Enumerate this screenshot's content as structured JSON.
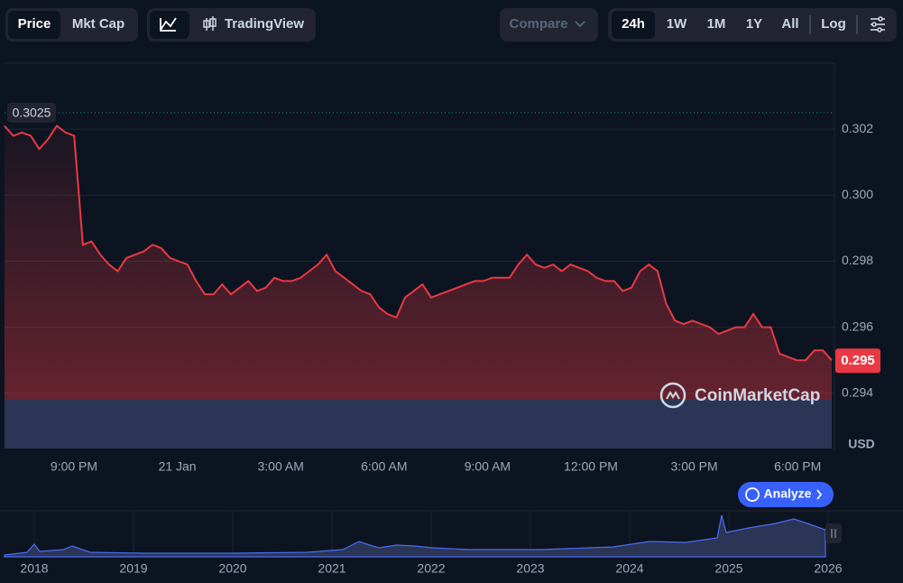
{
  "toolbar": {
    "view_buttons": [
      "Price",
      "Mkt Cap"
    ],
    "tradingview": "TradingView",
    "compare": "Compare",
    "ranges": [
      "24h",
      "1W",
      "1M",
      "1Y",
      "All"
    ],
    "log": "Log"
  },
  "chart_data": {
    "type": "line",
    "color": "#ea3943",
    "grid": true,
    "values": [
      0.3021,
      0.3018,
      0.3019,
      0.3018,
      0.3014,
      0.3017,
      0.3021,
      0.3019,
      0.3018,
      0.2985,
      0.2986,
      0.2982,
      0.2979,
      0.2977,
      0.2981,
      0.2982,
      0.2983,
      0.2985,
      0.2984,
      0.2981,
      0.298,
      0.2979,
      0.2974,
      0.297,
      0.297,
      0.2973,
      0.297,
      0.2972,
      0.2974,
      0.2971,
      0.2972,
      0.2975,
      0.2974,
      0.2974,
      0.2975,
      0.2977,
      0.2979,
      0.2982,
      0.2977,
      0.2975,
      0.2973,
      0.2971,
      0.297,
      0.2966,
      0.2964,
      0.2963,
      0.2969,
      0.2971,
      0.2973,
      0.2969,
      0.297,
      0.2971,
      0.2972,
      0.2973,
      0.2974,
      0.2974,
      0.2975,
      0.2975,
      0.2975,
      0.2979,
      0.2982,
      0.2979,
      0.2978,
      0.2979,
      0.2977,
      0.2979,
      0.2978,
      0.2977,
      0.2975,
      0.2974,
      0.2974,
      0.2971,
      0.2972,
      0.2977,
      0.2979,
      0.2977,
      0.2967,
      0.2962,
      0.2961,
      0.2962,
      0.2961,
      0.296,
      0.2958,
      0.2959,
      0.296,
      0.296,
      0.2964,
      0.296,
      0.296,
      0.2952,
      0.2951,
      0.295,
      0.295,
      0.2953,
      0.2953,
      0.295
    ],
    "ylim": [
      0.2923,
      0.304
    ],
    "yticks": [
      0.294,
      0.296,
      0.298,
      {
        "value": 0.3,
        "label": "0.300"
      },
      0.302
    ],
    "y_unit": "USD",
    "high": 0.3025,
    "last": 0.295,
    "xtick_labels": [
      "9:00 PM",
      "21 Jan",
      "3:00 AM",
      "6:00 AM",
      "9:00 AM",
      "12:00 PM",
      "3:00 PM",
      "6:00 PM"
    ]
  },
  "watermark": "CoinMarketCap",
  "analyze": "Analyze",
  "navigator": {
    "labels": [
      "2018",
      "2019",
      "2020",
      "2021",
      "2022",
      "2023",
      "2024",
      "2025",
      "2026"
    ]
  }
}
